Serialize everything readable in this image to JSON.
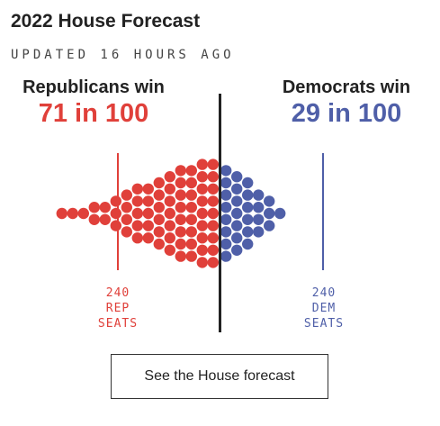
{
  "header": {
    "title": "2022 House Forecast",
    "updated": "UPDATED 16 HOURS AGO"
  },
  "republicans": {
    "label": "Republicans win",
    "odds": "71 in 100",
    "color": "#e0403a",
    "threshold_lines": [
      "240",
      "REP",
      "SEATS"
    ]
  },
  "democrats": {
    "label": "Democrats win",
    "odds": "29 in 100",
    "color": "#4f5fa8",
    "threshold_lines": [
      "240",
      "DEM",
      "SEATS"
    ]
  },
  "cta": {
    "label": "See the House forecast"
  },
  "chart_data": {
    "type": "scatter",
    "title": "2022 House Forecast",
    "description_of_marks": "beeswarm of 100 simulated outcomes",
    "outcomes_total": 100,
    "series": [
      {
        "name": "Republicans win",
        "count": 71,
        "color": "#e0403a"
      },
      {
        "name": "Democrats win",
        "count": 29,
        "color": "#4f5fa8"
      }
    ],
    "reference_lines": [
      {
        "label": "240 REP SEATS",
        "side": "republican"
      },
      {
        "label": "240 DEM SEATS",
        "side": "democratic"
      }
    ],
    "majority_line": "center"
  }
}
